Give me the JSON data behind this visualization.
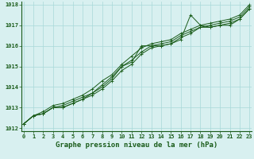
{
  "title": "Graphe pression niveau de la mer (hPa)",
  "bg_color": "#d8f0f0",
  "grid_color": "#a8d8d8",
  "line_color": "#1a5c1a",
  "x_min": 0,
  "x_max": 23,
  "y_min": 1012,
  "y_max": 1018,
  "x_ticks": [
    0,
    1,
    2,
    3,
    4,
    5,
    6,
    7,
    8,
    9,
    10,
    11,
    12,
    13,
    14,
    15,
    16,
    17,
    18,
    19,
    20,
    21,
    22,
    23
  ],
  "y_ticks": [
    1012,
    1013,
    1014,
    1015,
    1016,
    1017,
    1018
  ],
  "series": [
    [
      1012.2,
      1012.6,
      1012.7,
      1013.0,
      1013.0,
      1013.2,
      1013.4,
      1013.7,
      1014.0,
      1014.4,
      1015.0,
      1015.2,
      1016.0,
      1016.0,
      1016.0,
      1016.1,
      1016.3,
      1017.5,
      1017.0,
      1016.9,
      1017.0,
      1017.0,
      1017.3,
      1017.8
    ],
    [
      1012.2,
      1012.6,
      1012.7,
      1013.0,
      1013.0,
      1013.2,
      1013.4,
      1013.6,
      1013.9,
      1014.3,
      1014.8,
      1015.1,
      1015.6,
      1015.9,
      1016.0,
      1016.1,
      1016.4,
      1016.6,
      1016.9,
      1016.9,
      1017.0,
      1017.1,
      1017.3,
      1017.8
    ],
    [
      1012.2,
      1012.6,
      1012.7,
      1013.0,
      1013.1,
      1013.3,
      1013.5,
      1013.7,
      1014.1,
      1014.5,
      1015.0,
      1015.3,
      1015.7,
      1016.0,
      1016.1,
      1016.2,
      1016.5,
      1016.7,
      1016.9,
      1017.0,
      1017.1,
      1017.2,
      1017.4,
      1017.9
    ],
    [
      1012.2,
      1012.6,
      1012.8,
      1013.1,
      1013.2,
      1013.4,
      1013.6,
      1013.9,
      1014.3,
      1014.6,
      1015.1,
      1015.5,
      1015.9,
      1016.1,
      1016.2,
      1016.3,
      1016.6,
      1016.8,
      1017.0,
      1017.1,
      1017.2,
      1017.3,
      1017.5,
      1018.0
    ]
  ],
  "marker": "+",
  "marker_size": 3,
  "linewidth": 0.7,
  "title_fontsize": 6.5,
  "tick_fontsize": 5.0
}
